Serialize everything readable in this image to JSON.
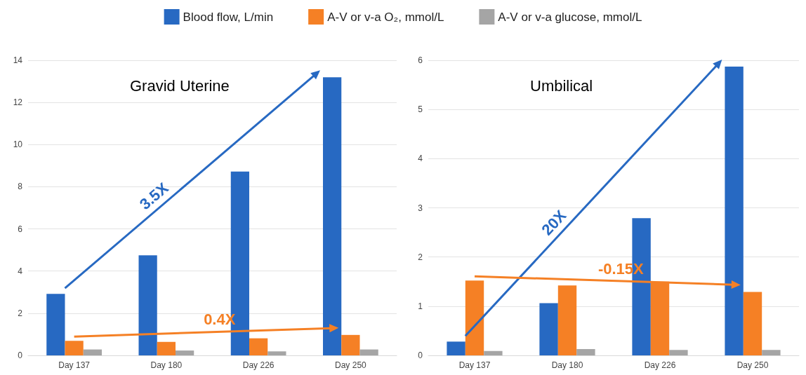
{
  "chart_data": [
    {
      "type": "bar",
      "title": "Gravid Uterine",
      "categories": [
        "Day 137",
        "Day 180",
        "Day 226",
        "Day 250"
      ],
      "series": [
        {
          "name": "Blood flow, L/min",
          "color": "#2769c2",
          "values": [
            2.92,
            4.75,
            8.72,
            13.19
          ]
        },
        {
          "name": "A-V or v-a O₂, mmol/L",
          "color": "#f58025",
          "values": [
            0.69,
            0.64,
            0.81,
            0.97
          ]
        },
        {
          "name": "A-V or v-a glucose, mmol/L",
          "color": "#a5a5a5",
          "values": [
            0.28,
            0.23,
            0.19,
            0.28
          ]
        }
      ],
      "annotations": [
        "3.5X",
        "0.4X"
      ],
      "ylim": [
        0,
        14
      ],
      "yticks": [
        0,
        2,
        4,
        6,
        8,
        10,
        12,
        14
      ],
      "grid": "y",
      "legend": "top"
    },
    {
      "type": "bar",
      "title": "Umbilical",
      "categories": [
        "Day 137",
        "Day 180",
        "Day 226",
        "Day 250"
      ],
      "series": [
        {
          "color": "#2769c2",
          "values": [
            0.28,
            1.06,
            2.79,
            5.87
          ]
        },
        {
          "color": "#f58025",
          "values": [
            1.52,
            1.42,
            1.5,
            1.29
          ]
        },
        {
          "color": "#a5a5a5",
          "values": [
            0.09,
            0.13,
            0.11,
            0.11
          ]
        }
      ],
      "annotations": [
        "20X",
        "-0.15X"
      ],
      "ylim": [
        0,
        6
      ],
      "yticks": [
        0,
        1,
        2,
        3,
        4,
        5,
        6
      ],
      "grid": "y"
    }
  ]
}
